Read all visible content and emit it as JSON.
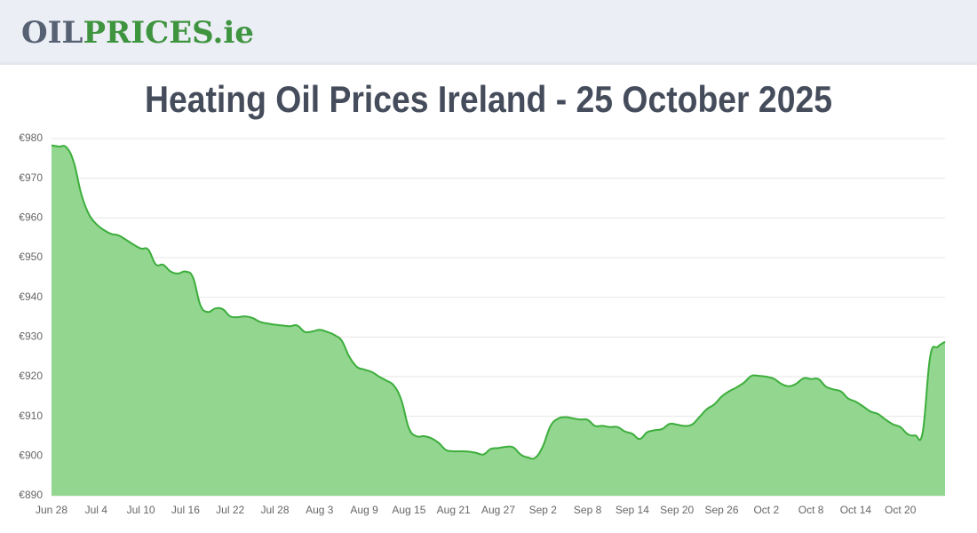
{
  "header": {
    "logo": {
      "part1": "OIL",
      "part2": "PRICES.ie"
    }
  },
  "chart_data": {
    "type": "area",
    "title": "Heating Oil Prices Ireland - 25 October 2025",
    "color": "#3cae3c",
    "fill": "#92d68f",
    "grid": true,
    "ylim": [
      890,
      980
    ],
    "yticks": [
      {
        "value": 890,
        "label": "€890"
      },
      {
        "value": 900,
        "label": "€900"
      },
      {
        "value": 910,
        "label": "€910"
      },
      {
        "value": 920,
        "label": "€920"
      },
      {
        "value": 930,
        "label": "€930"
      },
      {
        "value": 940,
        "label": "€940"
      },
      {
        "value": 950,
        "label": "€950"
      },
      {
        "value": 960,
        "label": "€960"
      },
      {
        "value": 970,
        "label": "€970"
      },
      {
        "value": 980,
        "label": "€980"
      }
    ],
    "categories": [
      "Jun 28",
      null,
      null,
      null,
      null,
      null,
      "Jul 4",
      null,
      null,
      null,
      null,
      null,
      "Jul 10",
      null,
      null,
      null,
      null,
      null,
      "Jul 16",
      null,
      null,
      null,
      null,
      null,
      "Jul 22",
      null,
      null,
      null,
      null,
      null,
      "Jul 28",
      null,
      null,
      null,
      null,
      null,
      "Aug 3",
      null,
      null,
      null,
      null,
      null,
      "Aug 9",
      null,
      null,
      null,
      null,
      null,
      "Aug 15",
      null,
      null,
      null,
      null,
      null,
      "Aug 21",
      null,
      null,
      null,
      null,
      null,
      "Aug 27",
      null,
      null,
      null,
      null,
      null,
      "Sep 2",
      null,
      null,
      null,
      null,
      null,
      "Sep 8",
      null,
      null,
      null,
      null,
      null,
      "Sep 14",
      null,
      null,
      null,
      null,
      null,
      "Sep 20",
      null,
      null,
      null,
      null,
      null,
      "Sep 26",
      null,
      null,
      null,
      null,
      null,
      "Oct 2",
      null,
      null,
      null,
      null,
      null,
      "Oct 8",
      null,
      null,
      null,
      null,
      null,
      "Oct 14",
      null,
      null,
      null,
      null,
      null,
      "Oct 20",
      null,
      null,
      null,
      null,
      null,
      null
    ],
    "values": [
      978.3,
      978,
      977.8,
      974,
      966,
      961,
      958.5,
      957,
      956,
      955.6,
      954.5,
      953.3,
      952.3,
      952,
      948.3,
      948.2,
      946.5,
      946,
      946.5,
      945,
      938,
      936.3,
      937.2,
      937,
      935.2,
      935,
      935.2,
      934.8,
      933.8,
      933.4,
      933.1,
      932.9,
      932.7,
      932.9,
      931.3,
      931.4,
      931.8,
      931.3,
      930.5,
      929,
      925,
      922.5,
      921.8,
      921.2,
      920,
      919,
      917.7,
      914,
      907,
      905,
      905,
      904.5,
      903.3,
      901.5,
      901.2,
      901.2,
      901.1,
      900.8,
      900.4,
      901.8,
      902,
      902.3,
      902.2,
      900.4,
      899.6,
      899.6,
      902.5,
      907.5,
      909.4,
      909.8,
      909.5,
      909.2,
      909.1,
      907.6,
      907.6,
      907.3,
      907.3,
      906.2,
      905.6,
      904.3,
      906,
      906.5,
      906.8,
      908.1,
      907.9,
      907.6,
      907.9,
      909.8,
      911.8,
      913,
      915,
      916.3,
      917.3,
      918.5,
      920.2,
      920.2,
      920,
      919.5,
      918.2,
      917.6,
      918.2,
      919.6,
      919.4,
      919.4,
      917.5,
      916.8,
      916.3,
      914.5,
      913.7,
      912.5,
      911.2,
      910.6,
      909.2,
      908,
      907.3,
      905.5,
      905.2,
      906,
      925,
      927.5,
      928.8
    ]
  }
}
